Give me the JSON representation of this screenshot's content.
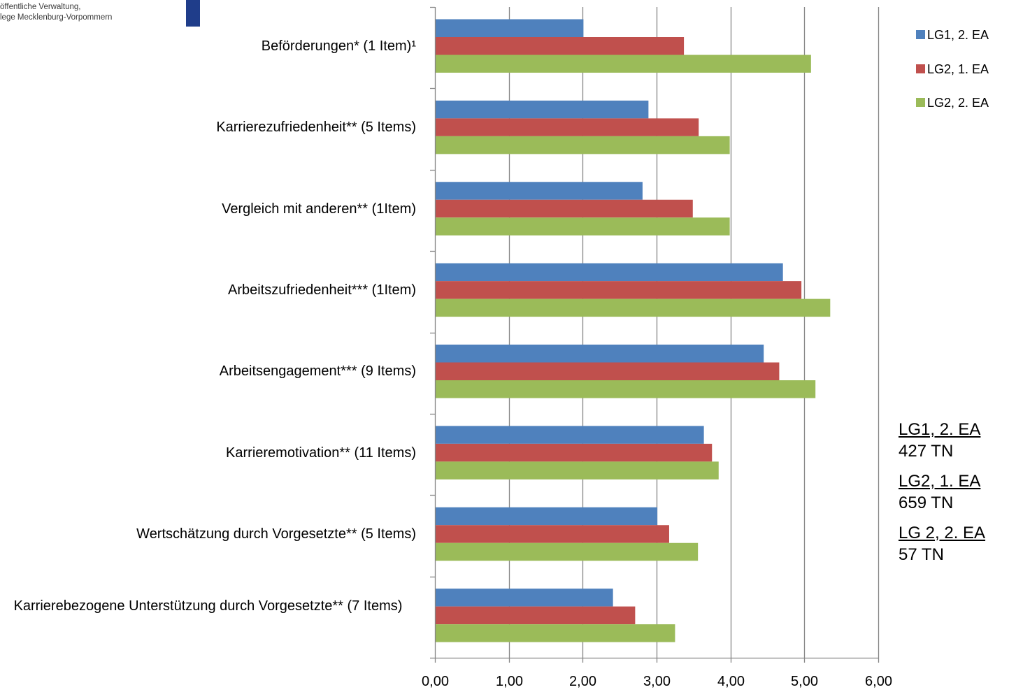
{
  "logo": {
    "line1": "öffentliche Verwaltung,",
    "line2": "lege Mecklenburg-Vorpommern"
  },
  "colors": {
    "lg1_2ea": "#4f81bd",
    "lg2_1ea": "#c0504d",
    "lg2_2ea": "#9bbb59",
    "gridline": "#868686",
    "logo_blue": "#1f3d8a"
  },
  "chart_data": {
    "type": "bar",
    "orientation": "horizontal",
    "categories": [
      "Beförderungen* (1 Item)¹",
      "Karrierezufriedenheit** (5 Items)",
      "Vergleich mit anderen** (1Item)",
      "Arbeitszufriedenheit*** (1Item)",
      "Arbeitsengagement*** (9 Items)",
      "Karrieremotivation** (11 Items)",
      "Wertschätzung durch Vorgesetzte** (5 Items)",
      "Karrierebezogene Unterstützung durch Vorgesetzte** (7 Items)"
    ],
    "series": [
      {
        "name": "LG1, 2. EA",
        "values": [
          2.01,
          2.89,
          2.81,
          4.71,
          4.45,
          3.64,
          3.01,
          2.41
        ]
      },
      {
        "name": "LG2, 1. EA",
        "values": [
          3.37,
          3.57,
          3.49,
          4.96,
          4.66,
          3.75,
          3.17,
          2.71
        ]
      },
      {
        "name": "LG2, 2. EA",
        "values": [
          5.09,
          3.99,
          3.99,
          5.35,
          5.15,
          3.84,
          3.56,
          3.25
        ]
      }
    ],
    "xlim": [
      0,
      6
    ],
    "xticks": [
      "0,00",
      "1,00",
      "2,00",
      "3,00",
      "4,00",
      "5,00",
      "6,00"
    ],
    "grid": true,
    "legend": "top-right"
  },
  "sample_info": [
    {
      "title": "LG1, 2. EA",
      "count": "427 TN"
    },
    {
      "title": "LG2, 1. EA",
      "count": "659 TN"
    },
    {
      "title": "LG 2, 2. EA",
      "count": "57 TN"
    }
  ]
}
